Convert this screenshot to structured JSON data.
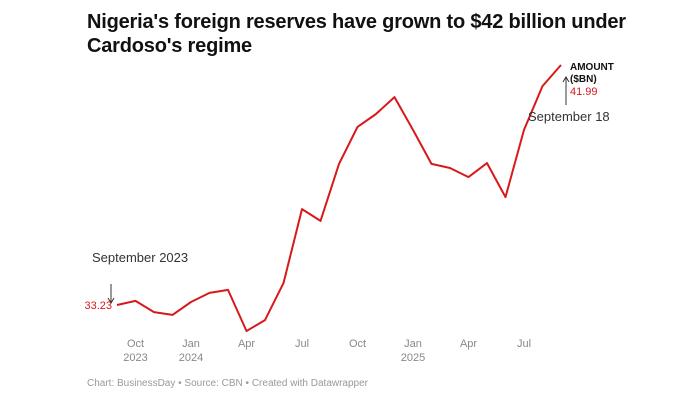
{
  "title": "Nigeria's foreign reserves have grown to $42 billion under Cardoso's regime",
  "footer": "Chart: BusinessDay • Source: CBN • Created with Datawrapper",
  "colors": {
    "line": "#d7191c",
    "tick": "#888888",
    "annotation": "#333333"
  },
  "chart_data": {
    "type": "line",
    "title": "Nigeria's foreign reserves have grown to $42 billion under Cardoso's regime",
    "xlabel": "",
    "ylabel": "",
    "grid": false,
    "series": [
      {
        "name": "AMOUNT ($BN)",
        "x": [
          "2023-09",
          "2023-10",
          "2023-11",
          "2023-12",
          "2024-01",
          "2024-02",
          "2024-03",
          "2024-04",
          "2024-05",
          "2024-06",
          "2024-07",
          "2024-08",
          "2024-09",
          "2024-10",
          "2024-11",
          "2024-12",
          "2025-01",
          "2025-02",
          "2025-03",
          "2025-04",
          "2025-05",
          "2025-06",
          "2025-07",
          "2025-08",
          "2025-09-18"
        ],
        "values": [
          33.23,
          33.38,
          32.97,
          32.87,
          33.34,
          33.67,
          33.78,
          32.28,
          32.68,
          34.03,
          36.73,
          36.3,
          38.38,
          39.73,
          40.2,
          40.82,
          39.62,
          38.38,
          38.23,
          37.9,
          38.41,
          37.17,
          39.62,
          41.22,
          41.99
        ]
      }
    ],
    "x_ticks": [
      {
        "line1": "Oct",
        "line2": "2023",
        "idx": 1
      },
      {
        "line1": "Jan",
        "line2": "2024",
        "idx": 4
      },
      {
        "line1": "Apr",
        "line2": "",
        "idx": 7
      },
      {
        "line1": "Jul",
        "line2": "",
        "idx": 10
      },
      {
        "line1": "Oct",
        "line2": "",
        "idx": 13
      },
      {
        "line1": "Jan",
        "line2": "2025",
        "idx": 16
      },
      {
        "line1": "Apr",
        "line2": "",
        "idx": 19
      },
      {
        "line1": "Jul",
        "line2": "",
        "idx": 22
      }
    ],
    "ylim": [
      32.0,
      42.2
    ],
    "legend": {
      "line1": "AMOUNT",
      "line2": "($BN)",
      "placement": "end-of-line"
    },
    "annotations": [
      {
        "text": "September 2023",
        "value_label": "33.23",
        "target_idx": 0
      },
      {
        "text": "September 18",
        "value_label": "41.99",
        "target_idx": 24
      }
    ]
  }
}
